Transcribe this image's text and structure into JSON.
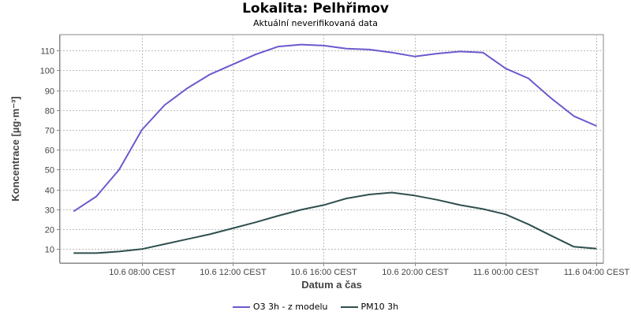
{
  "chart_data": {
    "type": "line",
    "title": "Lokalita: Pelhřimov",
    "subtitle": "Aktuální neverifikovaná data",
    "xlabel": "Datum a čas",
    "ylabel": "Koncentrace [µg·m⁻³]",
    "ylim": [
      3,
      118
    ],
    "xlim": [
      -0.6,
      23.3
    ],
    "yticks": [
      10,
      20,
      30,
      40,
      50,
      60,
      70,
      80,
      90,
      100,
      110
    ],
    "xticks": [
      {
        "x": 3,
        "label": "10.6 08:00 CEST"
      },
      {
        "x": 7,
        "label": "10.6 12:00 CEST"
      },
      {
        "x": 11,
        "label": "10.6 16:00 CEST"
      },
      {
        "x": 15,
        "label": "10.6 20:00 CEST"
      },
      {
        "x": 19,
        "label": "11.6 00:00 CEST"
      },
      {
        "x": 23,
        "label": "11.6 04:00 CEST"
      }
    ],
    "grid": true,
    "legend_position": "bottom",
    "series": [
      {
        "name": "O3 3h - z modelu",
        "color": "#6a5acd",
        "x": [
          0,
          1,
          2,
          3,
          4,
          5,
          6,
          7,
          8,
          9,
          10,
          11,
          12,
          13,
          14,
          15,
          16,
          17,
          18,
          19,
          20,
          21,
          22,
          23
        ],
        "values": [
          29,
          36.5,
          50,
          70,
          82.5,
          91,
          98,
          103,
          108,
          112,
          113,
          112.5,
          111,
          110.5,
          109,
          107,
          108.5,
          109.5,
          109,
          101,
          96,
          86,
          77,
          72
        ]
      },
      {
        "name": "PM10 3h",
        "color": "#2f4f4f",
        "x": [
          0,
          1,
          2,
          3,
          4,
          5,
          6,
          7,
          8,
          9,
          10,
          11,
          12,
          13,
          14,
          15,
          16,
          17,
          18,
          19,
          20,
          21,
          22,
          23
        ],
        "values": [
          8,
          8,
          8.8,
          10,
          12.5,
          15,
          17.5,
          20.5,
          23.5,
          26.8,
          29.8,
          32.2,
          35.5,
          37.5,
          38.5,
          37,
          34.8,
          32.2,
          30.2,
          27.5,
          22.5,
          16.8,
          11.2,
          10.2
        ]
      }
    ]
  }
}
